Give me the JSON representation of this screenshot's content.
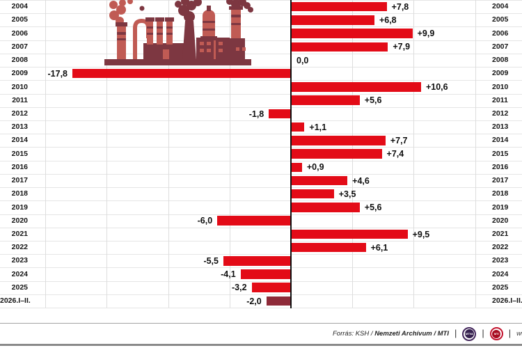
{
  "chart_data": {
    "type": "bar",
    "orientation": "horizontal",
    "unit": "%",
    "categories": [
      "2004",
      "2005",
      "2006",
      "2007",
      "2008",
      "2009",
      "2010",
      "2011",
      "2012",
      "2013",
      "2014",
      "2015",
      "2016",
      "2017",
      "2018",
      "2019",
      "2020",
      "2021",
      "2022",
      "2023",
      "2024",
      "2025",
      "2026.I–II."
    ],
    "values": [
      7.8,
      6.8,
      9.9,
      7.9,
      0.0,
      -17.8,
      10.6,
      5.6,
      -1.8,
      1.1,
      7.7,
      7.4,
      0.9,
      4.6,
      3.5,
      5.6,
      -6.0,
      9.5,
      6.1,
      -5.5,
      -4.1,
      -3.2,
      -2.0
    ],
    "value_labels": [
      "+7,8",
      "+6,8",
      "+9,9",
      "+7,9",
      "0,0",
      "-17,8",
      "+10,6",
      "+5,6",
      "-1,8",
      "+1,1",
      "+7,7",
      "+7,4",
      "+0,9",
      "+4,6",
      "+3,5",
      "+5,6",
      "-6,0",
      "+9,5",
      "+6,1",
      "-5,5",
      "-4,1",
      "-3,2",
      "-2,0"
    ],
    "xlim": [
      -20,
      19
    ],
    "gridline_step": 5,
    "grid_tick_values": [
      -20,
      -15,
      -10,
      -5,
      5,
      10,
      15
    ],
    "grid": true,
    "bar_color_overrides": {
      "22": "#8e2a38"
    },
    "colors": {
      "bar": "#e30b17",
      "final_bar": "#8e2a38",
      "axis": "#121212",
      "factory_dark": "#7d3741",
      "factory_light": "#c05b54"
    }
  },
  "footer": {
    "source_label": "Forrás: KSH / ",
    "source_bold": "Nemzeti Archívum",
    "source_tail": " / MTI",
    "separator": "|",
    "logos": {
      "mtva": "MTVA",
      "mti": "MTI"
    },
    "website_partial": "www.m"
  }
}
